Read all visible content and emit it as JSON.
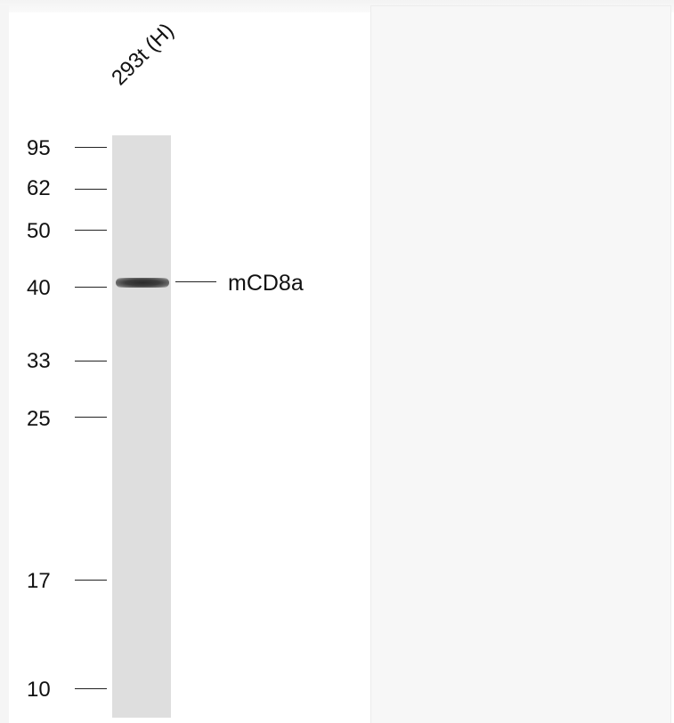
{
  "lane_label": "293t (H)",
  "protein_label": "mCD8a",
  "markers": [
    {
      "label": "95",
      "kda": 95
    },
    {
      "label": "62",
      "kda": 62
    },
    {
      "label": "50",
      "kda": 50
    },
    {
      "label": "40",
      "kda": 40
    },
    {
      "label": "33",
      "kda": 33
    },
    {
      "label": "25",
      "kda": 25
    },
    {
      "label": "17",
      "kda": 17
    },
    {
      "label": "10",
      "kda": 10
    }
  ],
  "band": {
    "kda": 40
  }
}
